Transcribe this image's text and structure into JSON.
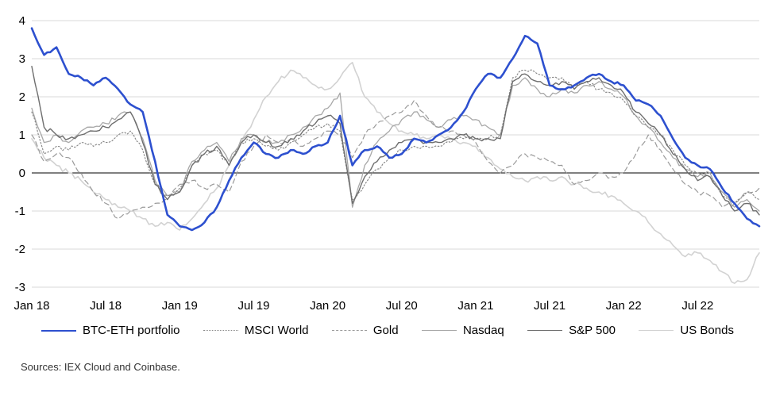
{
  "figure": {
    "source_note": "Sources: IEX Cloud and Coinbase."
  },
  "chart_data": {
    "type": "line",
    "title": "",
    "xlabel": "",
    "ylabel": "",
    "ylim": [
      -3,
      4
    ],
    "y_ticks": [
      -3,
      -2,
      -1,
      0,
      1,
      2,
      3,
      4
    ],
    "x_tick_labels": [
      "Jan 18",
      "Jul 18",
      "Jan 19",
      "Jul 19",
      "Jan 20",
      "Jul 20",
      "Jan 21",
      "Jul 21",
      "Jan 22",
      "Jul 22"
    ],
    "x_tick_indices": [
      0,
      6,
      12,
      18,
      24,
      30,
      36,
      42,
      48,
      54
    ],
    "x_start": "Jan 2018",
    "x_end": "Dec 2022",
    "x_unit": "month",
    "grid": "horizontal",
    "legend_position": "bottom",
    "zero_line_color": "#000000",
    "grid_color": "#d9d9d9",
    "series": [
      {
        "name": "BTC-ETH portfolio",
        "color": "#2d50cf",
        "style": "solid",
        "width": 2.6,
        "values": [
          3.8,
          3.1,
          3.3,
          2.6,
          2.5,
          2.3,
          2.5,
          2.2,
          1.8,
          1.6,
          0.3,
          -1.1,
          -1.4,
          -1.5,
          -1.3,
          -0.9,
          -0.2,
          0.4,
          0.8,
          0.5,
          0.4,
          0.6,
          0.5,
          0.7,
          0.8,
          1.5,
          0.2,
          0.6,
          0.7,
          0.4,
          0.5,
          0.9,
          0.8,
          1.0,
          1.2,
          1.6,
          2.2,
          2.6,
          2.5,
          3.0,
          3.6,
          3.4,
          2.3,
          2.2,
          2.3,
          2.5,
          2.6,
          2.4,
          2.3,
          1.9,
          1.8,
          1.5,
          0.9,
          0.4,
          0.2,
          0.1,
          -0.4,
          -0.8,
          -1.2,
          -1.4
        ]
      },
      {
        "name": "MSCI World",
        "color": "#8a8a8a",
        "style": "dotted",
        "width": 1.2,
        "values": [
          1.6,
          0.5,
          0.7,
          0.6,
          0.8,
          0.7,
          0.8,
          1.0,
          1.1,
          0.6,
          -0.3,
          -0.6,
          -0.4,
          0.2,
          0.5,
          0.6,
          0.2,
          0.8,
          0.9,
          0.7,
          0.6,
          0.8,
          1.0,
          1.2,
          1.3,
          1.1,
          -0.7,
          -0.3,
          0.1,
          0.4,
          0.6,
          0.7,
          0.7,
          0.7,
          0.8,
          0.9,
          0.9,
          0.9,
          1.0,
          2.5,
          2.7,
          2.6,
          2.5,
          2.5,
          2.3,
          2.4,
          2.2,
          2.1,
          1.9,
          1.5,
          1.2,
          1.0,
          0.6,
          0.2,
          0.0,
          -0.1,
          -0.6,
          -0.8,
          -0.5,
          -0.7
        ]
      },
      {
        "name": "Gold",
        "color": "#9b9b9b",
        "style": "dashed",
        "width": 1.2,
        "values": [
          1.0,
          0.3,
          0.5,
          0.4,
          0.0,
          -0.5,
          -0.8,
          -1.2,
          -1.0,
          -0.9,
          -0.8,
          -0.7,
          -0.3,
          -0.2,
          -0.4,
          -0.3,
          -0.5,
          0.3,
          0.7,
          1.0,
          0.8,
          0.9,
          0.7,
          0.9,
          1.1,
          1.0,
          0.4,
          1.0,
          1.3,
          1.5,
          1.6,
          1.9,
          1.5,
          1.2,
          1.1,
          1.0,
          0.8,
          0.3,
          0.0,
          0.2,
          0.5,
          0.4,
          0.3,
          0.2,
          -0.3,
          -0.2,
          0.0,
          -0.1,
          0.0,
          0.5,
          1.0,
          0.6,
          0.1,
          -0.3,
          -0.5,
          -0.6,
          -0.9,
          -0.8,
          -0.5,
          -0.4
        ]
      },
      {
        "name": "Nasdaq",
        "color": "#a8a8a8",
        "style": "solid",
        "width": 1.3,
        "values": [
          1.7,
          0.8,
          1.0,
          0.8,
          1.1,
          1.2,
          1.3,
          1.5,
          1.6,
          0.9,
          -0.2,
          -0.6,
          -0.5,
          0.3,
          0.6,
          0.8,
          0.3,
          0.9,
          1.0,
          0.8,
          0.8,
          1.0,
          1.2,
          1.5,
          1.7,
          2.1,
          -0.9,
          0.2,
          0.8,
          1.1,
          1.4,
          1.6,
          1.4,
          1.2,
          1.4,
          1.5,
          1.4,
          1.2,
          1.0,
          2.3,
          2.5,
          2.2,
          2.0,
          2.2,
          2.1,
          2.3,
          2.4,
          2.2,
          2.0,
          1.5,
          1.2,
          0.8,
          0.4,
          0.1,
          -0.1,
          0.0,
          -0.5,
          -0.9,
          -0.7,
          -1.0
        ]
      },
      {
        "name": "S&P 500",
        "color": "#6e6e6e",
        "style": "solid",
        "width": 1.4,
        "values": [
          2.8,
          1.2,
          1.0,
          0.9,
          1.0,
          1.1,
          1.2,
          1.4,
          1.6,
          0.8,
          -0.3,
          -0.7,
          -0.5,
          0.2,
          0.5,
          0.7,
          0.2,
          0.8,
          1.0,
          0.8,
          0.7,
          0.9,
          1.1,
          1.3,
          1.5,
          1.3,
          -0.8,
          -0.1,
          0.3,
          0.6,
          0.8,
          0.9,
          0.8,
          0.8,
          0.9,
          1.0,
          0.9,
          0.9,
          0.9,
          2.4,
          2.6,
          2.4,
          2.3,
          2.4,
          2.2,
          2.4,
          2.5,
          2.3,
          2.1,
          1.6,
          1.3,
          1.0,
          0.5,
          0.1,
          -0.2,
          -0.1,
          -0.6,
          -1.0,
          -0.8,
          -1.1
        ]
      },
      {
        "name": "US Bonds",
        "color": "#d2d2d2",
        "style": "solid",
        "width": 1.6,
        "values": [
          0.9,
          0.4,
          0.2,
          0.0,
          -0.2,
          -0.5,
          -0.7,
          -0.9,
          -1.0,
          -1.2,
          -1.4,
          -1.3,
          -1.5,
          -1.2,
          -0.8,
          -0.4,
          0.2,
          0.8,
          1.4,
          2.0,
          2.4,
          2.7,
          2.5,
          2.3,
          2.2,
          2.5,
          2.9,
          2.0,
          1.6,
          1.3,
          1.1,
          1.0,
          0.9,
          1.0,
          0.9,
          0.8,
          0.7,
          0.4,
          0.1,
          -0.1,
          -0.2,
          -0.1,
          -0.2,
          -0.1,
          -0.3,
          -0.4,
          -0.5,
          -0.6,
          -0.8,
          -1.0,
          -1.3,
          -1.6,
          -1.9,
          -2.2,
          -2.1,
          -2.3,
          -2.6,
          -2.9,
          -2.8,
          -2.1
        ]
      }
    ]
  }
}
